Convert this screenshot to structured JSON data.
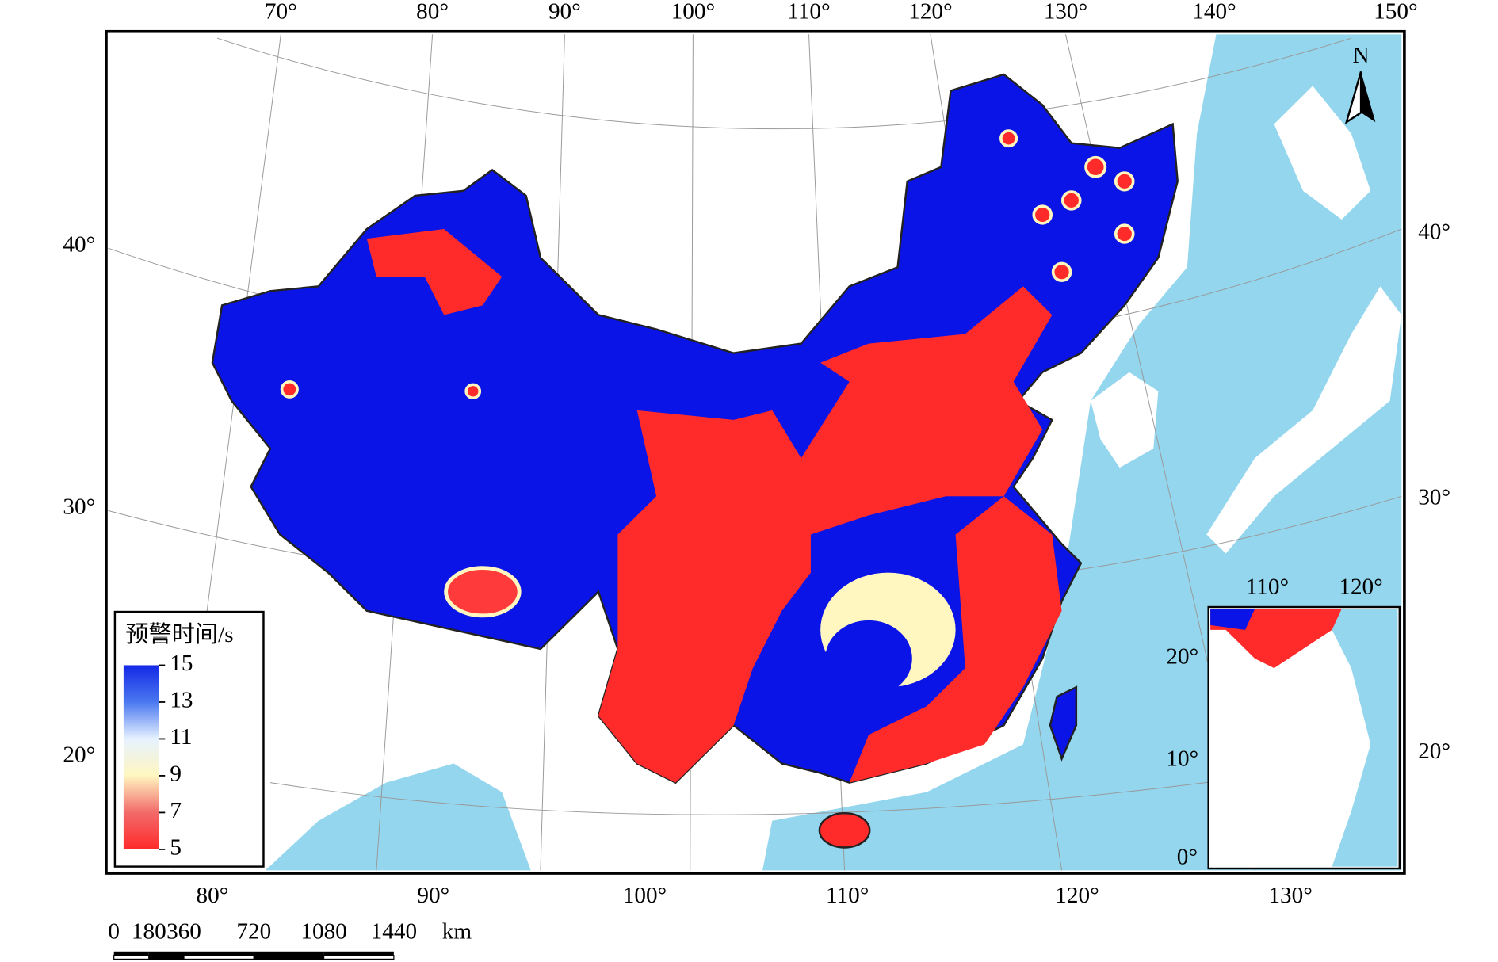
{
  "map": {
    "top_lon_labels": [
      "70°",
      "80°",
      "90°",
      "100°",
      "110°",
      "120°",
      "130°",
      "140°",
      "150°"
    ],
    "bottom_lon_labels": [
      "80°",
      "90°",
      "100°",
      "110°",
      "120°",
      "130°"
    ],
    "left_lat_labels": [
      "40°",
      "30°",
      "20°"
    ],
    "right_lat_labels": [
      "40°",
      "30°",
      "20°"
    ],
    "north_label": "N",
    "inset": {
      "lon_labels": [
        "110°",
        "120°"
      ],
      "lat_labels": [
        "20°",
        "10°",
        "0°"
      ]
    }
  },
  "legend": {
    "title": "预警时间/s",
    "range": [
      5,
      15
    ],
    "ticks": [
      15,
      13,
      11,
      9,
      7,
      5
    ],
    "colors": [
      "#ff2a2a",
      "#f26a6a",
      "#fff6c0",
      "#e6f2ff",
      "#4a78f0",
      "#1428e6"
    ]
  },
  "scale_bar": {
    "ticks": [
      0,
      180,
      360,
      720,
      1080,
      1440
    ],
    "unit": "km"
  }
}
